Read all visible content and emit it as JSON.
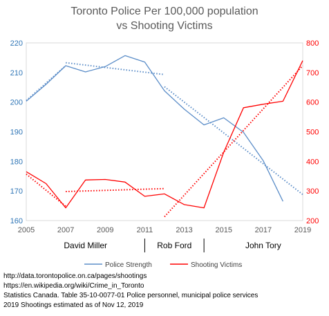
{
  "chart_data": {
    "type": "line",
    "title_lines": [
      "Toronto Police Per 100,000 population",
      "vs Shooting Victims"
    ],
    "x_ticks": [
      2005,
      2007,
      2009,
      2011,
      2013,
      2015,
      2017,
      2019
    ],
    "xlim": [
      2005,
      2019
    ],
    "y_left": {
      "ticks": [
        160,
        170,
        180,
        190,
        200,
        210,
        220
      ],
      "lim": [
        160,
        220
      ],
      "color": "#2E75B6"
    },
    "y_right": {
      "ticks": [
        200,
        300,
        400,
        500,
        600,
        700,
        800
      ],
      "lim": [
        200,
        800
      ],
      "color": "#FF0000"
    },
    "series": [
      {
        "name": "Police Strength",
        "axis": "left",
        "color": "#5B8DC8",
        "x": [
          2005,
          2006,
          2007,
          2008,
          2009,
          2010,
          2011,
          2012,
          2013,
          2014,
          2015,
          2016,
          2017,
          2018
        ],
        "values": [
          200.3,
          206,
          212.3,
          210.2,
          212,
          215.7,
          213.5,
          203.8,
          197.6,
          192.3,
          194.7,
          189.8,
          180.2,
          166.5
        ]
      },
      {
        "name": "Shooting Victims",
        "axis": "right",
        "color": "#FF0000",
        "x": [
          2005,
          2006,
          2007,
          2008,
          2009,
          2010,
          2011,
          2012,
          2013,
          2014,
          2015,
          2016,
          2017,
          2018,
          2019
        ],
        "values": [
          365,
          325,
          243,
          337,
          339,
          330,
          282,
          290,
          254,
          243,
          431,
          581,
          593,
          603,
          740
        ]
      }
    ],
    "trendlines": [
      {
        "axis": "left",
        "color": "#5B8DC8",
        "x": [
          2005,
          2007
        ],
        "values": [
          200.5,
          212.3
        ]
      },
      {
        "axis": "left",
        "color": "#5B8DC8",
        "x": [
          2007,
          2012
        ],
        "values": [
          213.3,
          209.3
        ]
      },
      {
        "axis": "left",
        "color": "#5B8DC8",
        "x": [
          2012,
          2019
        ],
        "values": [
          205.2,
          168.8
        ]
      },
      {
        "axis": "right",
        "color": "#FF0000",
        "x": [
          2005,
          2007
        ],
        "values": [
          357,
          248
        ]
      },
      {
        "axis": "right",
        "color": "#FF0000",
        "x": [
          2007,
          2012
        ],
        "values": [
          298,
          308
        ]
      },
      {
        "axis": "right",
        "color": "#FF0000",
        "x": [
          2012,
          2019
        ],
        "values": [
          213,
          723
        ]
      }
    ],
    "eras": [
      {
        "label": "David Miller",
        "center": 2008
      },
      {
        "label": "Rob Ford",
        "center": 2012.5
      },
      {
        "label": "John Tory",
        "center": 2017
      }
    ],
    "era_dividers": [
      2011,
      2014
    ],
    "legend": {
      "position": "bottom"
    },
    "grid": false
  },
  "sources": [
    "http://data.torontopolice.on.ca/pages/shootings",
    "https://en.wikipedia.org/wiki/Crime_in_Toronto",
    "Statistics Canada. Table  35-10-0077-01 Police personnel, municipal police services",
    "2019 Shootings estimated as of Nov 12, 2019"
  ]
}
